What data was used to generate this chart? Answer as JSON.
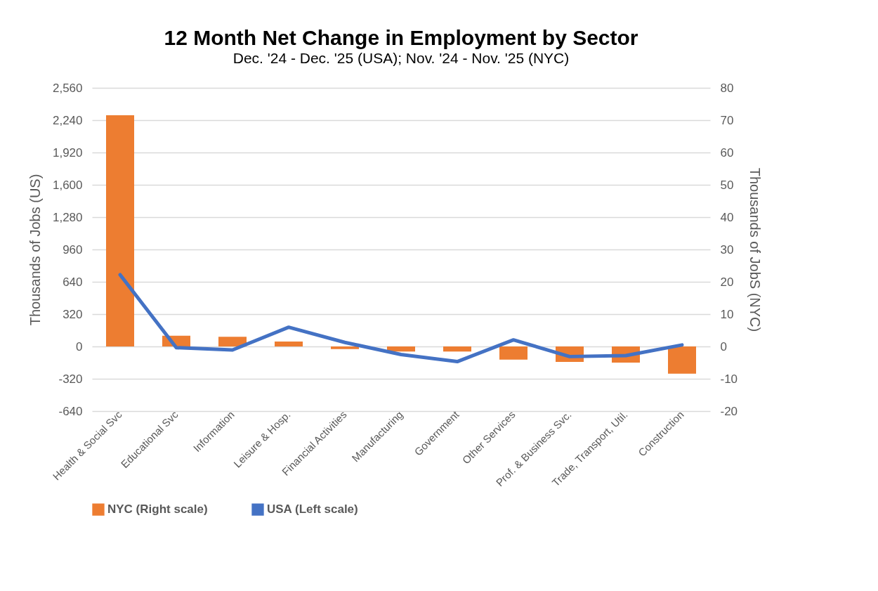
{
  "chart_data": {
    "type": "bar",
    "title": "12 Month Net Change in Employment by Sector",
    "subtitle": "Dec. '24 - Dec. '25 (USA); Nov. '24 - Nov. '25 (NYC)",
    "ylabel": "Thousands of Jobs (US)",
    "y2label": "Thousands of JobS (NYC)",
    "categories": [
      "Health & Social Svc",
      "Educational Svc",
      "Information",
      "Leisure & Hosp.",
      "Financial Activities",
      "Manufacturing",
      "Government",
      "Other Services",
      "Prof. & Business Svc.",
      "Trade, Transport, Util.",
      "Construction"
    ],
    "series": [
      {
        "name": "NYC (Right scale)",
        "type": "bar",
        "axis": "y2",
        "color": "#ed7d31",
        "values": [
          71.5,
          3.3,
          3.0,
          1.5,
          -0.8,
          -1.6,
          -1.6,
          -4.1,
          -4.8,
          -5.0,
          -8.4
        ]
      },
      {
        "name": "USA (Left scale)",
        "type": "line",
        "color": "#4472c4",
        "values": [
          710,
          -12,
          -35,
          190,
          40,
          -80,
          -150,
          65,
          -100,
          -90,
          15
        ]
      }
    ],
    "ylim": [
      -640,
      2560
    ],
    "yticks": [
      {
        "value": -640,
        "label": "-640"
      },
      {
        "value": -320,
        "label": "-320"
      },
      0,
      320,
      640,
      960,
      {
        "value": 1280,
        "label": "1,280"
      },
      {
        "value": 1600,
        "label": "1,600"
      },
      {
        "value": 1920,
        "label": "1,920"
      },
      {
        "value": 2240,
        "label": "2,240"
      },
      {
        "value": 2560,
        "label": "2,560"
      }
    ],
    "y2lim": [
      -20,
      80
    ],
    "y2ticks": [
      {
        "value": -20,
        "label": "-20"
      },
      {
        "value": -10,
        "label": "-10"
      },
      0,
      10,
      20,
      30,
      40,
      50,
      60,
      70,
      80
    ],
    "grid": "y",
    "legend": "bottom"
  }
}
